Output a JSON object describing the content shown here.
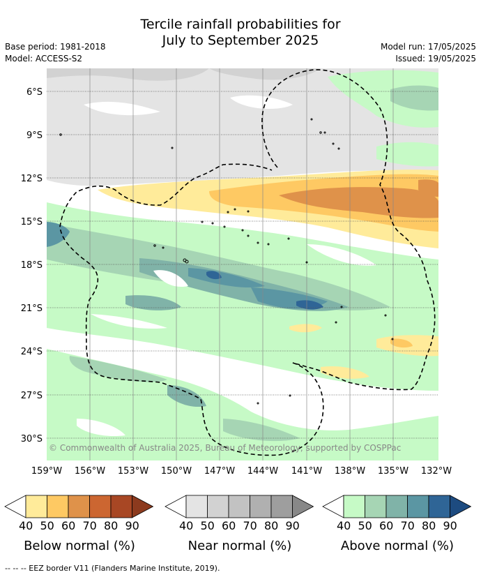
{
  "title_line1": "Tercile rainfall probabilities for",
  "title_line2": "July to September 2025",
  "base_period": "Base period: 1981-2018",
  "model": "Model: ACCESS-S2",
  "model_run": "Model run: 17/05/2025",
  "issued": "Issued: 19/05/2025",
  "lat_ticks": [
    "6°S",
    "9°S",
    "12°S",
    "15°S",
    "18°S",
    "21°S",
    "24°S",
    "27°S",
    "30°S"
  ],
  "lon_ticks": [
    "159°W",
    "156°W",
    "153°W",
    "150°W",
    "147°W",
    "144°W",
    "141°W",
    "138°W",
    "135°W",
    "132°W"
  ],
  "copyright": "© Commonwealth of Australia 2025, Bureau of Meteorology, supported by COSPPac",
  "legends": [
    {
      "title": "Below normal (%)",
      "labels": [
        "40",
        "50",
        "60",
        "70",
        "80",
        "90"
      ],
      "colors": [
        "#ffffff",
        "#ffeb9a",
        "#fec963",
        "#df924a",
        "#cc6631",
        "#a84724",
        "#8c3a1e"
      ]
    },
    {
      "title": "Near normal (%)",
      "labels": [
        "40",
        "50",
        "60",
        "70",
        "80",
        "90"
      ],
      "colors": [
        "#ffffff",
        "#e4e4e4",
        "#d2d2d2",
        "#c2c2c2",
        "#b0b0b0",
        "#9e9e9e",
        "#888888"
      ]
    },
    {
      "title": "Above normal (%)",
      "labels": [
        "40",
        "50",
        "60",
        "70",
        "80",
        "90"
      ],
      "colors": [
        "#ffffff",
        "#c6fac6",
        "#a6d5b4",
        "#80b3a8",
        "#5b96a3",
        "#2f6596",
        "#1d4b80"
      ]
    }
  ],
  "eez_note": "--  --  -- EEZ border V11 (Flanders Marine Institute, 2019)."
}
